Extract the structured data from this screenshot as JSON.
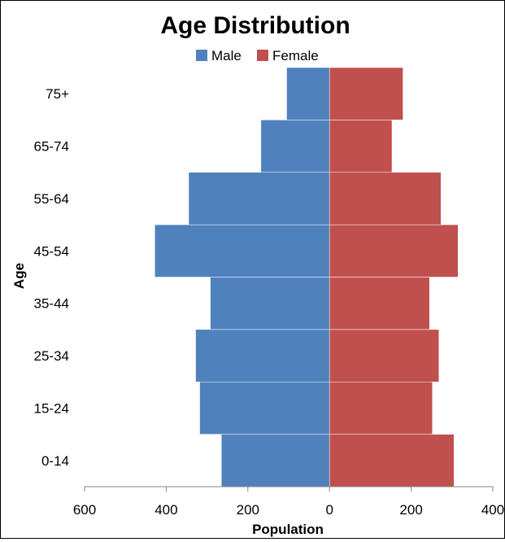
{
  "chart_data": {
    "type": "bar",
    "orientation": "horizontal",
    "title": "Age Distribution",
    "xlabel": "Population",
    "ylabel": "Age",
    "xlim": [
      -600,
      400
    ],
    "x_ticks": [
      -600,
      -400,
      -200,
      0,
      200,
      400
    ],
    "x_tick_labels": [
      "600",
      "400",
      "200",
      "0",
      "200",
      "400"
    ],
    "categories": [
      "0-14",
      "15-24",
      "25-34",
      "35-44",
      "45-54",
      "55-64",
      "65-74",
      "75+"
    ],
    "series": [
      {
        "name": "Male",
        "color": "#4F81BD",
        "values": [
          265,
          318,
          328,
          292,
          428,
          345,
          168,
          105
        ]
      },
      {
        "name": "Female",
        "color": "#C0504D",
        "values": [
          305,
          252,
          268,
          245,
          315,
          273,
          153,
          180
        ]
      }
    ],
    "legend_position": "top",
    "grid": false
  }
}
